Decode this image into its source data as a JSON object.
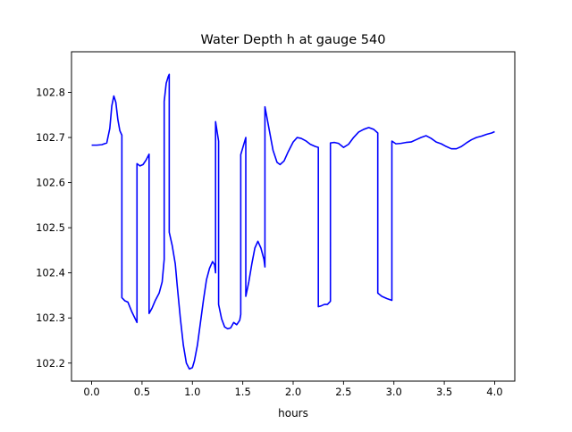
{
  "chart_data": {
    "type": "line",
    "title": "Water Depth h at gauge 540",
    "xlabel": "hours",
    "ylabel": "",
    "xlim": [
      -0.2,
      4.2
    ],
    "ylim": [
      102.16,
      102.89
    ],
    "xticks": [
      0.0,
      0.5,
      1.0,
      1.5,
      2.0,
      2.5,
      3.0,
      3.5,
      4.0
    ],
    "xtick_labels": [
      "0.0",
      "0.5",
      "1.0",
      "1.5",
      "2.0",
      "2.5",
      "3.0",
      "3.5",
      "4.0"
    ],
    "yticks": [
      102.2,
      102.3,
      102.4,
      102.5,
      102.6,
      102.7,
      102.8
    ],
    "ytick_labels": [
      "102.2",
      "102.3",
      "102.4",
      "102.5",
      "102.6",
      "102.7",
      "102.8"
    ],
    "grid": false,
    "legend": "none",
    "series": [
      {
        "color": "#0000ff",
        "x": [
          0.0,
          0.05,
          0.1,
          0.15,
          0.18,
          0.2,
          0.22,
          0.24,
          0.26,
          0.28,
          0.3,
          0.3,
          0.33,
          0.36,
          0.4,
          0.45,
          0.45,
          0.48,
          0.51,
          0.54,
          0.57,
          0.57,
          0.6,
          0.63,
          0.67,
          0.7,
          0.72,
          0.72,
          0.74,
          0.76,
          0.77,
          0.77,
          0.8,
          0.83,
          0.85,
          0.88,
          0.91,
          0.94,
          0.97,
          1.0,
          1.02,
          1.05,
          1.08,
          1.11,
          1.14,
          1.17,
          1.2,
          1.22,
          1.23,
          1.23,
          1.26,
          1.26,
          1.29,
          1.32,
          1.35,
          1.38,
          1.41,
          1.44,
          1.47,
          1.48,
          1.48,
          1.53,
          1.53,
          1.56,
          1.59,
          1.62,
          1.65,
          1.68,
          1.71,
          1.72,
          1.72,
          1.76,
          1.8,
          1.84,
          1.87,
          1.91,
          1.95,
          2.0,
          2.04,
          2.08,
          2.13,
          2.17,
          2.22,
          2.25,
          2.25,
          2.28,
          2.31,
          2.34,
          2.37,
          2.37,
          2.41,
          2.45,
          2.5,
          2.55,
          2.6,
          2.65,
          2.7,
          2.75,
          2.8,
          2.84,
          2.84,
          2.88,
          2.93,
          2.98,
          2.98,
          3.02,
          3.07,
          3.12,
          3.17,
          3.22,
          3.27,
          3.32,
          3.37,
          3.42,
          3.47,
          3.52,
          3.57,
          3.62,
          3.67,
          3.72,
          3.77,
          3.82,
          3.87,
          3.92,
          3.97,
          4.0
        ],
        "y": [
          102.683,
          102.683,
          102.684,
          102.688,
          102.72,
          102.77,
          102.792,
          102.778,
          102.74,
          102.715,
          102.705,
          102.345,
          102.338,
          102.335,
          102.313,
          102.29,
          102.642,
          102.637,
          102.64,
          102.65,
          102.663,
          102.31,
          102.322,
          102.338,
          102.355,
          102.38,
          102.43,
          102.78,
          102.82,
          102.835,
          102.84,
          102.49,
          102.46,
          102.42,
          102.37,
          102.3,
          102.24,
          102.2,
          102.187,
          102.19,
          102.205,
          102.24,
          102.29,
          102.34,
          102.385,
          102.41,
          102.425,
          102.418,
          102.4,
          102.735,
          102.692,
          102.33,
          102.298,
          102.28,
          102.276,
          102.278,
          102.29,
          102.285,
          102.295,
          102.308,
          102.662,
          102.7,
          102.348,
          102.38,
          102.42,
          102.455,
          102.47,
          102.455,
          102.43,
          102.413,
          102.768,
          102.72,
          102.672,
          102.645,
          102.64,
          102.648,
          102.668,
          102.69,
          102.7,
          102.698,
          102.692,
          102.685,
          102.68,
          102.678,
          102.325,
          102.327,
          102.33,
          102.33,
          102.337,
          102.688,
          102.689,
          102.687,
          102.678,
          102.685,
          102.7,
          102.712,
          102.718,
          102.722,
          102.718,
          102.71,
          102.355,
          102.348,
          102.343,
          102.339,
          102.692,
          102.686,
          102.687,
          102.689,
          102.69,
          102.695,
          102.7,
          102.704,
          102.698,
          102.69,
          102.686,
          102.68,
          102.675,
          102.675,
          102.68,
          102.688,
          102.695,
          102.7,
          102.703,
          102.707,
          102.71,
          102.713
        ]
      }
    ]
  }
}
